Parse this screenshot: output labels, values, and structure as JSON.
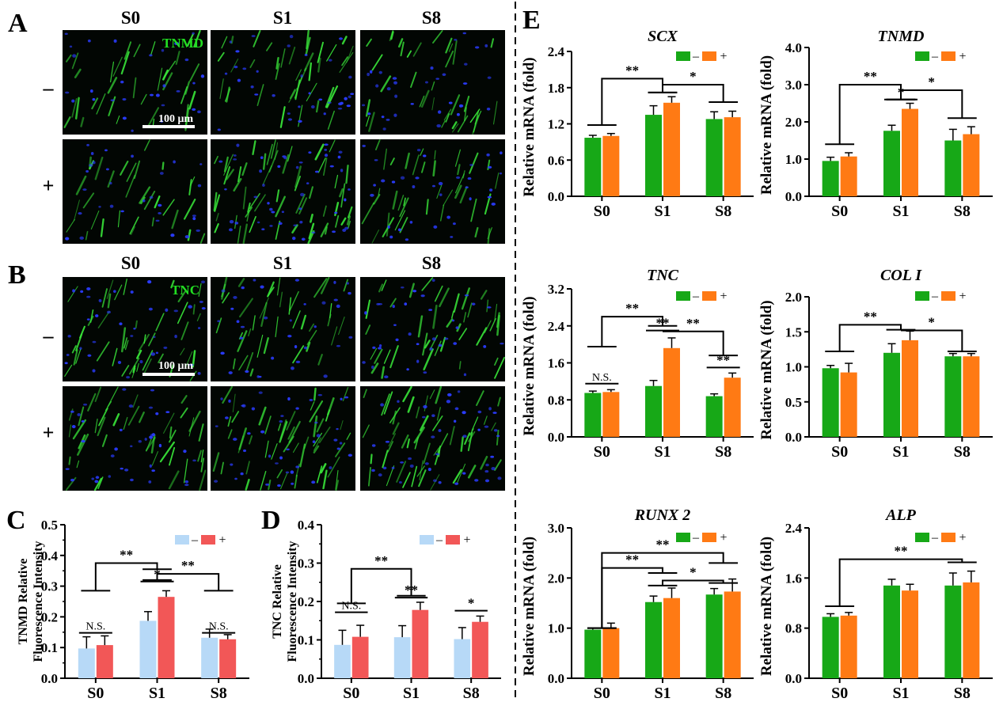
{
  "figure": {
    "micrographs": [
      {
        "letter": "A",
        "stain": "TNMD",
        "columns": [
          "S0",
          "S1",
          "S8"
        ],
        "rows": [
          "–",
          "+"
        ],
        "scalebar": "100 μm",
        "density": [
          [
            0.45,
            0.55,
            0.5
          ],
          [
            0.4,
            1.0,
            0.55
          ]
        ]
      },
      {
        "letter": "B",
        "stain": "TNC",
        "columns": [
          "S0",
          "S1",
          "S8"
        ],
        "rows": [
          "–",
          "+"
        ],
        "scalebar": "100 μm",
        "density": [
          [
            0.7,
            0.55,
            0.6
          ],
          [
            0.65,
            0.85,
            0.9
          ]
        ]
      }
    ],
    "colors": {
      "fluor_green": "#39e639",
      "nucleus_blue": "#2a3cff",
      "stain_label": "#22dd22",
      "green_bar": "#17a817",
      "orange_bar": "#ff7a14",
      "lightblue_bar": "#b7d9f7",
      "red_bar": "#f25757"
    }
  },
  "chart_data": [
    {
      "id": "C",
      "letter": "C",
      "type": "bar",
      "title": "",
      "ylabel_lines": [
        "TNMD Relative",
        "Fluorescence Intensity"
      ],
      "categories": [
        "S0",
        "S1",
        "S8"
      ],
      "ylim": [
        0,
        0.5
      ],
      "yticks": [
        "0.0",
        "0.1",
        "0.2",
        "0.3",
        "0.4",
        "0.5"
      ],
      "colors": [
        "#b7d9f7",
        "#f25757"
      ],
      "legend": {
        "labels": [
          "–",
          "+"
        ],
        "position": "top-right"
      },
      "series": [
        {
          "name": "–",
          "values": [
            0.097,
            0.187,
            0.132
          ],
          "errors": [
            0.038,
            0.03,
            0.028
          ]
        },
        {
          "name": "+",
          "values": [
            0.108,
            0.265,
            0.127
          ],
          "errors": [
            0.03,
            0.02,
            0.015
          ]
        }
      ],
      "annotations": [
        {
          "kind": "pair",
          "cat": 0,
          "y": 0.148,
          "label": "N.S."
        },
        {
          "kind": "pair",
          "cat": 1,
          "y": 0.315,
          "label": "*"
        },
        {
          "kind": "pair",
          "cat": 2,
          "y": 0.148,
          "label": "N.S."
        },
        {
          "kind": "bracket",
          "from": 0,
          "to": 1,
          "y": 0.375,
          "d1": 0.09,
          "d2": 0.02,
          "label": "**"
        },
        {
          "kind": "bracket",
          "from": 1,
          "to": 2,
          "y": 0.34,
          "d1": 0.02,
          "d2": 0.055,
          "label": "**"
        }
      ]
    },
    {
      "id": "D",
      "letter": "D",
      "type": "bar",
      "title": "",
      "ylabel_lines": [
        "TNC Relative",
        "Fluorescence Intensity"
      ],
      "categories": [
        "S0",
        "S1",
        "S8"
      ],
      "ylim": [
        0,
        0.4
      ],
      "yticks": [
        "0.0",
        "0.1",
        "0.2",
        "0.3",
        "0.4"
      ],
      "colors": [
        "#b7d9f7",
        "#f25757"
      ],
      "legend": {
        "labels": [
          "–",
          "+"
        ],
        "position": "top-right"
      },
      "series": [
        {
          "name": "–",
          "values": [
            0.087,
            0.107,
            0.102
          ],
          "errors": [
            0.038,
            0.03,
            0.03
          ]
        },
        {
          "name": "+",
          "values": [
            0.108,
            0.178,
            0.147
          ],
          "errors": [
            0.03,
            0.02,
            0.015
          ]
        }
      ],
      "annotations": [
        {
          "kind": "pair",
          "cat": 0,
          "y": 0.172,
          "label": "N.S."
        },
        {
          "kind": "pair",
          "cat": 1,
          "y": 0.21,
          "label": "**"
        },
        {
          "kind": "pair",
          "cat": 2,
          "y": 0.176,
          "label": "*"
        },
        {
          "kind": "bracket",
          "from": 0,
          "to": 1,
          "y": 0.285,
          "d1": 0.09,
          "d2": 0.07,
          "label": "**"
        }
      ]
    },
    {
      "id": "E1",
      "letter": "E",
      "type": "bar",
      "title": "SCX",
      "ylabel": "Relative mRNA (fold)",
      "categories": [
        "S0",
        "S1",
        "S8"
      ],
      "ylim": [
        0,
        2.4
      ],
      "yticks": [
        "0.0",
        "0.6",
        "1.2",
        "1.8",
        "2.4"
      ],
      "colors": [
        "#17a817",
        "#ff7a14"
      ],
      "legend": {
        "labels": [
          "–",
          "+"
        ],
        "position": "top-right"
      },
      "series": [
        {
          "name": "–",
          "values": [
            0.97,
            1.35,
            1.28
          ],
          "errors": [
            0.04,
            0.15,
            0.12
          ]
        },
        {
          "name": "+",
          "values": [
            1.0,
            1.55,
            1.31
          ],
          "errors": [
            0.04,
            0.1,
            0.1
          ]
        }
      ],
      "annotations": [
        {
          "kind": "bracket",
          "from": 0,
          "to": 1,
          "y": 1.95,
          "d1": 0.77,
          "d2": 0.23,
          "label": "**"
        },
        {
          "kind": "bracket",
          "from": 1,
          "to": 2,
          "y": 1.85,
          "d1": 0.13,
          "d2": 0.29,
          "label": "*"
        }
      ]
    },
    {
      "id": "E2",
      "letter": "",
      "type": "bar",
      "title": "TNMD",
      "ylabel": "Relative mRNA (fold)",
      "categories": [
        "S0",
        "S1",
        "S8"
      ],
      "ylim": [
        0,
        4.0
      ],
      "yticks": [
        "0.0",
        "1.0",
        "2.0",
        "3.0",
        "4.0"
      ],
      "colors": [
        "#17a817",
        "#ff7a14"
      ],
      "legend": {
        "labels": [
          "–",
          "+"
        ],
        "position": "top-right"
      },
      "series": [
        {
          "name": "–",
          "values": [
            0.95,
            1.76,
            1.5
          ],
          "errors": [
            0.1,
            0.15,
            0.3
          ]
        },
        {
          "name": "+",
          "values": [
            1.07,
            2.35,
            1.67
          ],
          "errors": [
            0.1,
            0.15,
            0.2
          ]
        }
      ],
      "annotations": [
        {
          "kind": "pair",
          "cat": 1,
          "y": 2.6,
          "label": "*"
        },
        {
          "kind": "bracket",
          "from": 0,
          "to": 1,
          "y": 3.0,
          "d1": 1.6,
          "d2": 0.4,
          "label": "**"
        },
        {
          "kind": "bracket",
          "from": 1,
          "to": 2,
          "y": 2.85,
          "d1": 0.25,
          "d2": 0.75,
          "label": "*"
        }
      ]
    },
    {
      "id": "E3",
      "letter": "",
      "type": "bar",
      "title": "TNC",
      "ylabel": "Relative mRNA (fold)",
      "categories": [
        "S0",
        "S1",
        "S8"
      ],
      "ylim": [
        0,
        3.2
      ],
      "yticks": [
        "0.0",
        "0.8",
        "1.6",
        "2.4",
        "3.2"
      ],
      "colors": [
        "#17a817",
        "#ff7a14"
      ],
      "legend": {
        "labels": [
          "–",
          "+"
        ],
        "position": "top-right"
      },
      "series": [
        {
          "name": "–",
          "values": [
            0.95,
            1.1,
            0.88
          ],
          "errors": [
            0.04,
            0.12,
            0.05
          ]
        },
        {
          "name": "+",
          "values": [
            0.97,
            1.92,
            1.28
          ],
          "errors": [
            0.05,
            0.22,
            0.1
          ]
        }
      ],
      "annotations": [
        {
          "kind": "pair",
          "cat": 0,
          "y": 1.15,
          "label": "N.S."
        },
        {
          "kind": "pair",
          "cat": 1,
          "y": 2.3,
          "label": "**"
        },
        {
          "kind": "pair",
          "cat": 2,
          "y": 1.5,
          "label": "**"
        },
        {
          "kind": "bracket",
          "from": 0,
          "to": 1,
          "y": 2.6,
          "d1": 0.65,
          "d2": 0.2,
          "label": "**"
        },
        {
          "kind": "bracket",
          "from": 1,
          "to": 2,
          "y": 2.28,
          "d1": 0.0,
          "d2": 0.52,
          "label": "**"
        }
      ]
    },
    {
      "id": "E4",
      "letter": "",
      "type": "bar",
      "title": "COL I",
      "ylabel": "Relative mRNA (fold)",
      "categories": [
        "S0",
        "S1",
        "S8"
      ],
      "ylim": [
        0,
        2.0
      ],
      "yticks": [
        "0.0",
        "0.5",
        "1.0",
        "1.5",
        "2.0"
      ],
      "colors": [
        "#17a817",
        "#ff7a14"
      ],
      "legend": {
        "labels": [
          "–",
          "+"
        ],
        "position": "top-right"
      },
      "series": [
        {
          "name": "–",
          "values": [
            0.98,
            1.2,
            1.15
          ],
          "errors": [
            0.04,
            0.13,
            0.04
          ]
        },
        {
          "name": "+",
          "values": [
            0.92,
            1.38,
            1.15
          ],
          "errors": [
            0.13,
            0.13,
            0.04
          ]
        }
      ],
      "annotations": [
        {
          "kind": "bracket",
          "from": 0,
          "to": 1,
          "y": 1.6,
          "d1": 0.38,
          "d2": 0.07,
          "label": "**"
        },
        {
          "kind": "bracket",
          "from": 1,
          "to": 2,
          "y": 1.52,
          "d1": 0.0,
          "d2": 0.3,
          "label": "*"
        }
      ]
    },
    {
      "id": "E5",
      "letter": "",
      "type": "bar",
      "title": "RUNX 2",
      "ylabel": "Relative mRNA (fold)",
      "categories": [
        "S0",
        "S1",
        "S8"
      ],
      "ylim": [
        0,
        3.0
      ],
      "yticks": [
        "0.0",
        "1.0",
        "2.0",
        "3.0"
      ],
      "colors": [
        "#17a817",
        "#ff7a14"
      ],
      "legend": {
        "labels": [
          "–",
          "+"
        ],
        "position": "top-right"
      },
      "series": [
        {
          "name": "–",
          "values": [
            0.97,
            1.52,
            1.67
          ],
          "errors": [
            0.03,
            0.12,
            0.12
          ]
        },
        {
          "name": "+",
          "values": [
            1.0,
            1.6,
            1.73
          ],
          "errors": [
            0.1,
            0.2,
            0.25
          ]
        }
      ],
      "annotations": [
        {
          "kind": "bracket",
          "from": 0,
          "to": 2,
          "y": 2.5,
          "d1": 1.5,
          "d2": 0.2,
          "label": "**"
        },
        {
          "kind": "bracket",
          "from": 0,
          "to": 1,
          "y": 2.2,
          "d1": 1.2,
          "d2": 0.1,
          "label": "**"
        },
        {
          "kind": "bracket",
          "from": 1,
          "to": 2,
          "y": 1.95,
          "d1": 0.1,
          "d2": 0.05,
          "label": "*"
        }
      ]
    },
    {
      "id": "E6",
      "letter": "",
      "type": "bar",
      "title": "ALP",
      "ylabel": "Relative mRNA (fold)",
      "categories": [
        "S0",
        "S1",
        "S8"
      ],
      "ylim": [
        0,
        2.4
      ],
      "yticks": [
        "0.0",
        "0.8",
        "1.6",
        "2.4"
      ],
      "colors": [
        "#17a817",
        "#ff7a14"
      ],
      "legend": {
        "labels": [
          "–",
          "+"
        ],
        "position": "top-right"
      },
      "series": [
        {
          "name": "–",
          "values": [
            0.98,
            1.48,
            1.48
          ],
          "errors": [
            0.05,
            0.1,
            0.2
          ]
        },
        {
          "name": "+",
          "values": [
            1.0,
            1.4,
            1.53
          ],
          "errors": [
            0.05,
            0.1,
            0.18
          ]
        }
      ],
      "annotations": [
        {
          "kind": "bracket",
          "from": 0,
          "to": 2,
          "y": 1.9,
          "d1": 0.75,
          "d2": 0.05,
          "label": "**"
        }
      ]
    }
  ]
}
